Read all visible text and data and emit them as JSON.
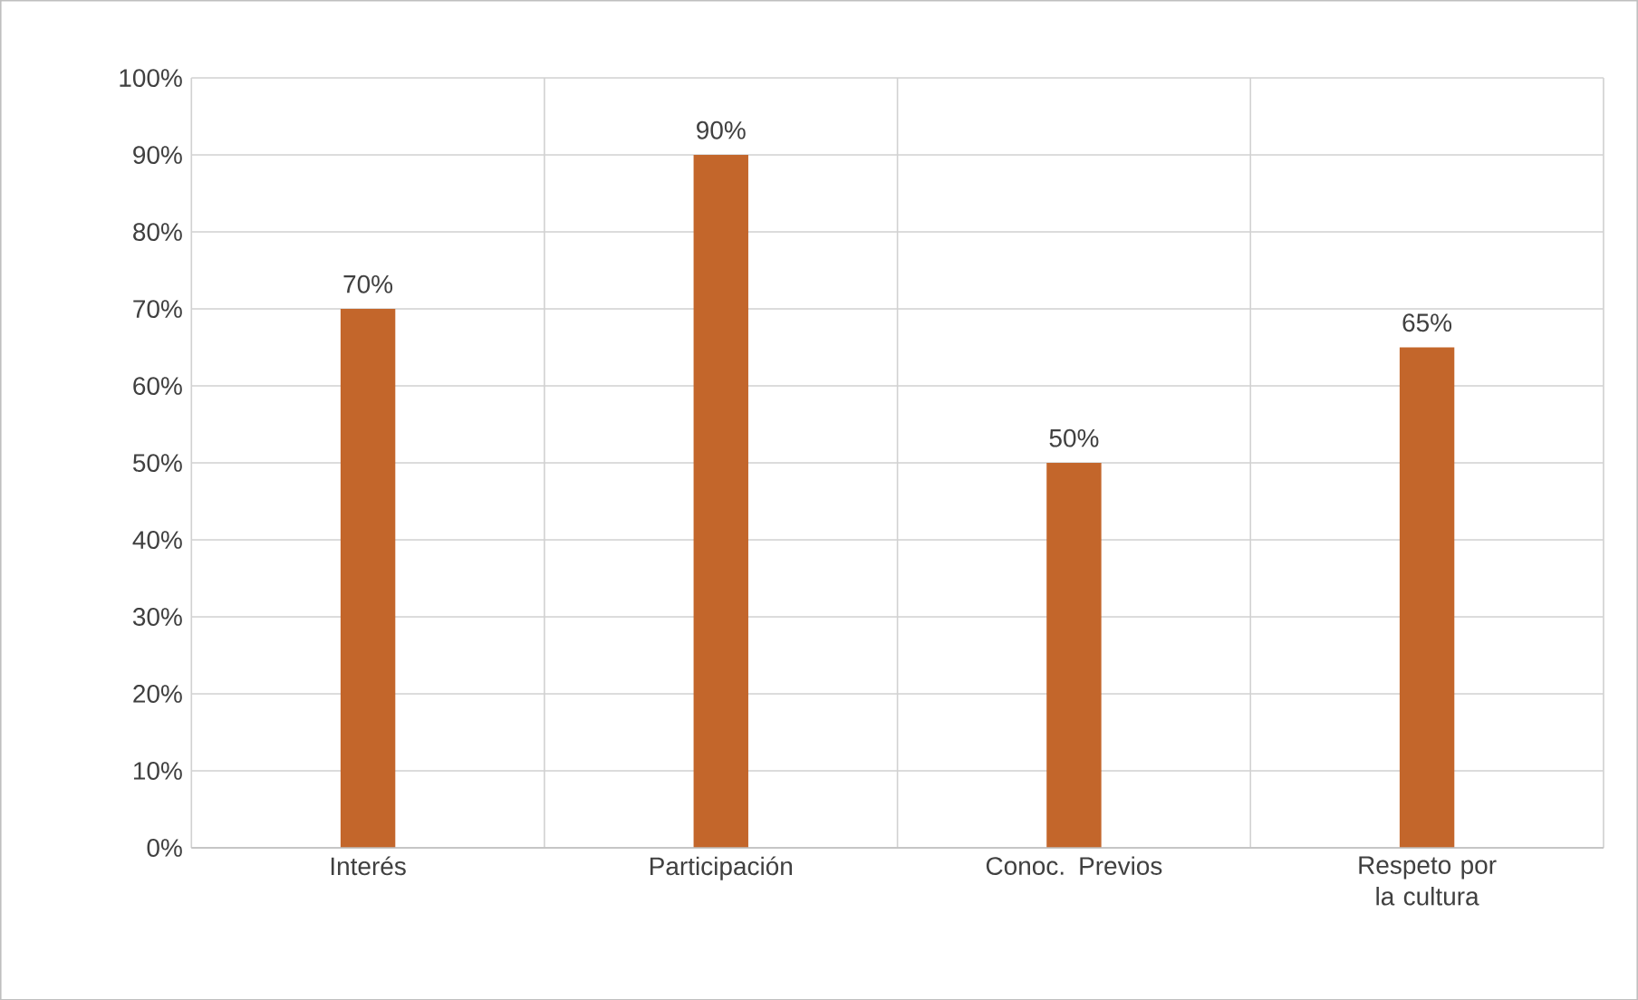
{
  "chart_data": {
    "type": "bar",
    "categories": [
      "Interés",
      "Participación",
      "Conoc. Previos",
      "Respeto por la cultura"
    ],
    "values": [
      70,
      90,
      50,
      65
    ],
    "value_labels": [
      "70%",
      "90%",
      "50%",
      "65%"
    ],
    "color": "#c3662b",
    "ylim": [
      0,
      100
    ],
    "yticks": [
      {
        "value": 0,
        "label": "0%"
      },
      {
        "value": 10,
        "label": "10%"
      },
      {
        "value": 20,
        "label": "20%"
      },
      {
        "value": 30,
        "label": "30%"
      },
      {
        "value": 40,
        "label": "40%"
      },
      {
        "value": 50,
        "label": "50%"
      },
      {
        "value": 60,
        "label": "60%"
      },
      {
        "value": 70,
        "label": "70%"
      },
      {
        "value": 80,
        "label": "80%"
      },
      {
        "value": 90,
        "label": "90%"
      },
      {
        "value": 100,
        "label": "100%"
      }
    ],
    "grid": true
  }
}
